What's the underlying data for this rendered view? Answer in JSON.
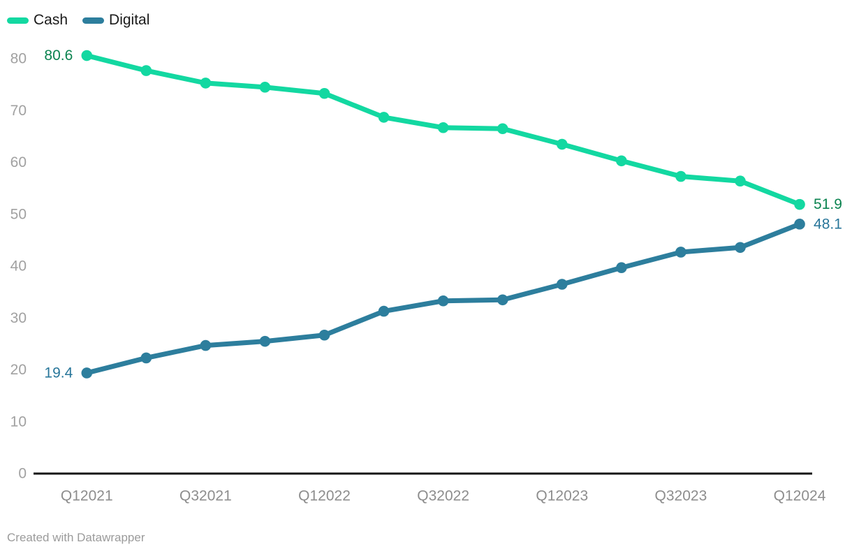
{
  "legend": {
    "items": [
      {
        "label": "Cash",
        "color": "#13d8a1"
      },
      {
        "label": "Digital",
        "color": "#2d7e9d"
      }
    ]
  },
  "footer": {
    "text": "Created with Datawrapper"
  },
  "chart_data": {
    "type": "line",
    "x": [
      "Q1 2021",
      "Q2 2021",
      "Q3 2021",
      "Q4 2021",
      "Q1 2022",
      "Q2 2022",
      "Q3 2022",
      "Q4 2022",
      "Q1 2023",
      "Q2 2023",
      "Q3 2023",
      "Q4 2023",
      "Q1 2024"
    ],
    "x_ticks": [
      {
        "i": 0,
        "label": "Q12021"
      },
      {
        "i": 2,
        "label": "Q32021"
      },
      {
        "i": 4,
        "label": "Q12022"
      },
      {
        "i": 6,
        "label": "Q32022"
      },
      {
        "i": 8,
        "label": "Q12023"
      },
      {
        "i": 10,
        "label": "Q32023"
      },
      {
        "i": 12,
        "label": "Q12024"
      }
    ],
    "yticks": [
      0,
      10,
      20,
      30,
      40,
      50,
      60,
      70,
      80
    ],
    "ylim": [
      0,
      80
    ],
    "grid": false,
    "legend_position": "top-left",
    "series": [
      {
        "name": "Cash",
        "color": "#13d8a1",
        "label_color": "#0b8350",
        "start_label": "80.6",
        "end_label": "51.9",
        "values": [
          80.6,
          77.7,
          75.3,
          74.5,
          73.3,
          68.7,
          66.7,
          66.5,
          63.5,
          60.3,
          57.3,
          56.4,
          51.9
        ]
      },
      {
        "name": "Digital",
        "color": "#2d7e9d",
        "label_color": "#28769a",
        "start_label": "19.4",
        "end_label": "48.1",
        "values": [
          19.4,
          22.3,
          24.7,
          25.5,
          26.7,
          31.3,
          33.3,
          33.5,
          36.5,
          39.7,
          42.7,
          43.6,
          48.1
        ]
      }
    ],
    "axis_colors": {
      "y_tick": "#a1a1a1",
      "x_tick": "#8d8d8d",
      "baseline": "#161616"
    }
  }
}
